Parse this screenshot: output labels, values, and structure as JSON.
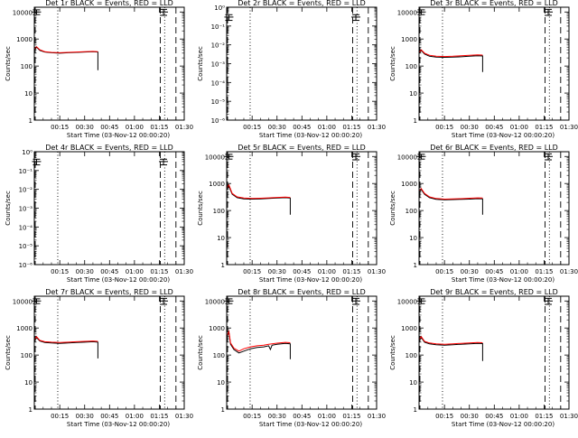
{
  "chart_data": [
    {
      "type": "line",
      "title": "Det 1r BLACK = Events, RED = LLD",
      "xlabel": "Start Time (03-Nov-12 00:00:20)",
      "ylabel": "Counts/sec",
      "yscale": "log",
      "ylim": [
        1,
        15000
      ],
      "ytick_values": [
        1,
        10,
        100,
        1000,
        10000
      ],
      "ytick_labels": [
        "1",
        "10",
        "100",
        "1000",
        "10000"
      ],
      "xlim_minutes": [
        -0.33,
        90
      ],
      "xtick_labels": [
        "00:15",
        "00:30",
        "00:45",
        "01:00",
        "01:15",
        "01:30"
      ],
      "xtick_minutes": [
        15,
        30,
        45,
        60,
        75,
        90
      ],
      "vlines": [
        {
          "x": 0.2,
          "style": "dashed"
        },
        {
          "x": 13.8,
          "style": "dotted"
        },
        {
          "x": 75.6,
          "style": "dashed"
        },
        {
          "x": 78.2,
          "style": "dotted"
        },
        {
          "x": 85.0,
          "style": "dashed"
        }
      ],
      "markers": [
        {
          "x": 1.0,
          "y": 10000,
          "err": 2000
        },
        {
          "x": 77.5,
          "y": 10000,
          "err": 2500
        }
      ],
      "series": [
        {
          "color": "#000000",
          "x": [
            0,
            1,
            3,
            6,
            10,
            15,
            20,
            25,
            30,
            35,
            38,
            38
          ],
          "y": [
            400,
            500,
            380,
            330,
            310,
            300,
            310,
            320,
            330,
            340,
            330,
            70
          ]
        },
        {
          "color": "#ff0000",
          "x": [
            0,
            1,
            3,
            6,
            10,
            15,
            20,
            25,
            30,
            35,
            38
          ],
          "y": [
            450,
            520,
            400,
            340,
            320,
            310,
            320,
            330,
            340,
            350,
            340
          ]
        }
      ]
    },
    {
      "type": "line",
      "title": "Det 2r BLACK = Events, RED = LLD",
      "xlabel": "Start Time (03-Nov-12 00:00:20)",
      "ylabel": "Counts/sec",
      "yscale": "log",
      "ylim": [
        1,
        1e-06
      ],
      "ytick_values": [
        1e-06,
        1e-05,
        0.0001,
        0.001,
        0.01,
        0.1,
        1
      ],
      "ytick_labels": [
        "10⁻⁶",
        "10⁻⁵",
        "10⁻⁴",
        "10⁻³",
        "10⁻²",
        "10⁻¹",
        "10⁰"
      ],
      "xlim_minutes": [
        -0.33,
        90
      ],
      "xtick_labels": [
        "00:15",
        "00:30",
        "00:45",
        "01:00",
        "01:15",
        "01:30"
      ],
      "xtick_minutes": [
        15,
        30,
        45,
        60,
        75,
        90
      ],
      "vlines": [
        {
          "x": 0.2,
          "style": "dashed"
        },
        {
          "x": 13.8,
          "style": "dotted"
        },
        {
          "x": 75.6,
          "style": "dashed"
        },
        {
          "x": 78.2,
          "style": "dotted"
        },
        {
          "x": 85.0,
          "style": "dashed"
        }
      ],
      "markers": [
        {
          "x": 1.0,
          "y": 0.3,
          "err": 0.1
        },
        {
          "x": 77.5,
          "y": 0.3,
          "err": 0.1
        }
      ],
      "series": []
    },
    {
      "type": "line",
      "title": "Det 3r BLACK = Events, RED = LLD",
      "xlabel": "Start Time (03-Nov-12 00:00:20)",
      "ylabel": "Counts/sec",
      "yscale": "log",
      "ylim": [
        1,
        15000
      ],
      "ytick_values": [
        1,
        10,
        100,
        1000,
        10000
      ],
      "ytick_labels": [
        "1",
        "10",
        "100",
        "1000",
        "10000"
      ],
      "xlim_minutes": [
        -0.33,
        90
      ],
      "xtick_labels": [
        "00:15",
        "00:30",
        "00:45",
        "01:00",
        "01:15",
        "01:30"
      ],
      "xtick_minutes": [
        15,
        30,
        45,
        60,
        75,
        90
      ],
      "vlines": [
        {
          "x": 0.2,
          "style": "dashed"
        },
        {
          "x": 13.8,
          "style": "dotted"
        },
        {
          "x": 75.6,
          "style": "dashed"
        },
        {
          "x": 78.2,
          "style": "dotted"
        },
        {
          "x": 85.0,
          "style": "dashed"
        }
      ],
      "markers": [
        {
          "x": 1.0,
          "y": 10000,
          "err": 2000
        },
        {
          "x": 77.5,
          "y": 10000,
          "err": 2500
        }
      ],
      "series": [
        {
          "color": "#000000",
          "x": [
            0,
            1,
            3,
            6,
            10,
            15,
            20,
            25,
            30,
            35,
            38,
            38
          ],
          "y": [
            300,
            380,
            280,
            230,
            215,
            210,
            215,
            220,
            230,
            240,
            235,
            60
          ]
        },
        {
          "color": "#ff0000",
          "x": [
            0,
            1,
            3,
            6,
            10,
            15,
            20,
            25,
            30,
            35,
            38
          ],
          "y": [
            330,
            400,
            300,
            250,
            230,
            225,
            230,
            240,
            250,
            260,
            255
          ]
        }
      ]
    },
    {
      "type": "line",
      "title": "Det 4r BLACK = Events, RED = LLD",
      "xlabel": "Start Time (03-Nov-12 00:00:20)",
      "ylabel": "Counts/sec",
      "yscale": "log",
      "ylim": [
        1,
        1e-06
      ],
      "ytick_values": [
        1e-06,
        1e-05,
        0.0001,
        0.001,
        0.01,
        0.1,
        1
      ],
      "ytick_labels": [
        "10⁻⁶",
        "10⁻⁵",
        "10⁻⁴",
        "10⁻³",
        "10⁻²",
        "10⁻¹",
        "10⁰"
      ],
      "xlim_minutes": [
        -0.33,
        90
      ],
      "xtick_labels": [
        "00:15",
        "00:30",
        "00:45",
        "01:00",
        "01:15",
        "01:30"
      ],
      "xtick_minutes": [
        15,
        30,
        45,
        60,
        75,
        90
      ],
      "vlines": [
        {
          "x": 0.2,
          "style": "dashed"
        },
        {
          "x": 13.8,
          "style": "dotted"
        },
        {
          "x": 75.6,
          "style": "dashed"
        },
        {
          "x": 78.2,
          "style": "dotted"
        },
        {
          "x": 85.0,
          "style": "dashed"
        }
      ],
      "markers": [
        {
          "x": 1.0,
          "y": 0.3,
          "err": 0.1
        },
        {
          "x": 77.5,
          "y": 0.3,
          "err": 0.1
        }
      ],
      "series": []
    },
    {
      "type": "line",
      "title": "Det 5r BLACK = Events, RED = LLD",
      "xlabel": "Start Time (03-Nov-12 00:00:20)",
      "ylabel": "Counts/sec",
      "yscale": "log",
      "ylim": [
        1,
        15000
      ],
      "ytick_values": [
        1,
        10,
        100,
        1000,
        10000
      ],
      "ytick_labels": [
        "1",
        "10",
        "100",
        "1000",
        "10000"
      ],
      "xlim_minutes": [
        -0.33,
        90
      ],
      "xtick_labels": [
        "00:15",
        "00:30",
        "00:45",
        "01:00",
        "01:15",
        "01:30"
      ],
      "xtick_minutes": [
        15,
        30,
        45,
        60,
        75,
        90
      ],
      "vlines": [
        {
          "x": 0.2,
          "style": "dashed"
        },
        {
          "x": 13.8,
          "style": "dotted"
        },
        {
          "x": 75.6,
          "style": "dashed"
        },
        {
          "x": 78.2,
          "style": "dotted"
        },
        {
          "x": 85.0,
          "style": "dashed"
        }
      ],
      "markers": [
        {
          "x": 1.0,
          "y": 10000,
          "err": 2000
        },
        {
          "x": 77.5,
          "y": 10000,
          "err": 2500
        }
      ],
      "series": [
        {
          "color": "#000000",
          "x": [
            0,
            1,
            3,
            6,
            10,
            15,
            20,
            25,
            30,
            35,
            38,
            38
          ],
          "y": [
            600,
            800,
            400,
            300,
            270,
            265,
            270,
            280,
            290,
            300,
            290,
            70
          ]
        },
        {
          "color": "#ff0000",
          "x": [
            0,
            1,
            3,
            6,
            10,
            15,
            20,
            25,
            30,
            35,
            38
          ],
          "y": [
            700,
            900,
            430,
            320,
            290,
            280,
            285,
            295,
            305,
            315,
            305
          ]
        }
      ]
    },
    {
      "type": "line",
      "title": "Det 6r BLACK = Events, RED = LLD",
      "xlabel": "Start Time (03-Nov-12 00:00:20)",
      "ylabel": "Counts/sec",
      "yscale": "log",
      "ylim": [
        1,
        15000
      ],
      "ytick_values": [
        1,
        10,
        100,
        1000,
        10000
      ],
      "ytick_labels": [
        "1",
        "10",
        "100",
        "1000",
        "10000"
      ],
      "xlim_minutes": [
        -0.33,
        90
      ],
      "xtick_labels": [
        "00:15",
        "00:30",
        "00:45",
        "01:00",
        "01:15",
        "01:30"
      ],
      "xtick_minutes": [
        15,
        30,
        45,
        60,
        75,
        90
      ],
      "vlines": [
        {
          "x": 0.2,
          "style": "dashed"
        },
        {
          "x": 13.8,
          "style": "dotted"
        },
        {
          "x": 75.6,
          "style": "dashed"
        },
        {
          "x": 78.2,
          "style": "dotted"
        },
        {
          "x": 85.0,
          "style": "dashed"
        }
      ],
      "markers": [
        {
          "x": 1.0,
          "y": 10000,
          "err": 2000
        },
        {
          "x": 77.5,
          "y": 10000,
          "err": 2500
        }
      ],
      "series": [
        {
          "color": "#000000",
          "x": [
            0,
            1,
            3,
            6,
            10,
            15,
            20,
            25,
            30,
            35,
            38,
            38
          ],
          "y": [
            500,
            600,
            400,
            300,
            260,
            250,
            255,
            260,
            265,
            275,
            270,
            70
          ]
        },
        {
          "color": "#ff0000",
          "x": [
            0,
            1,
            3,
            6,
            10,
            15,
            20,
            25,
            30,
            35,
            38
          ],
          "y": [
            560,
            650,
            430,
            320,
            280,
            265,
            270,
            275,
            285,
            295,
            290
          ]
        }
      ]
    },
    {
      "type": "line",
      "title": "Det 7r BLACK = Events, RED = LLD",
      "xlabel": "Start Time (03-Nov-12 00:00:20)",
      "ylabel": "Counts/sec",
      "yscale": "log",
      "ylim": [
        1,
        15000
      ],
      "ytick_values": [
        1,
        10,
        100,
        1000,
        10000
      ],
      "ytick_labels": [
        "1",
        "10",
        "100",
        "1000",
        "10000"
      ],
      "xlim_minutes": [
        -0.33,
        90
      ],
      "xtick_labels": [
        "00:15",
        "00:30",
        "00:45",
        "01:00",
        "01:15",
        "01:30"
      ],
      "xtick_minutes": [
        15,
        30,
        45,
        60,
        75,
        90
      ],
      "vlines": [
        {
          "x": 0.2,
          "style": "dashed"
        },
        {
          "x": 13.8,
          "style": "dotted"
        },
        {
          "x": 75.6,
          "style": "dashed"
        },
        {
          "x": 78.2,
          "style": "dotted"
        },
        {
          "x": 85.0,
          "style": "dashed"
        }
      ],
      "markers": [
        {
          "x": 1.0,
          "y": 10000,
          "err": 2000
        },
        {
          "x": 77.5,
          "y": 10000,
          "err": 2500
        }
      ],
      "series": [
        {
          "color": "#000000",
          "x": [
            0,
            1,
            3,
            6,
            10,
            15,
            20,
            25,
            30,
            35,
            38,
            38
          ],
          "y": [
            350,
            450,
            330,
            290,
            280,
            270,
            280,
            290,
            300,
            310,
            300,
            75
          ]
        },
        {
          "color": "#ff0000",
          "x": [
            0,
            1,
            3,
            6,
            10,
            15,
            20,
            25,
            30,
            35,
            38
          ],
          "y": [
            380,
            480,
            350,
            310,
            300,
            290,
            300,
            310,
            320,
            330,
            320
          ]
        }
      ]
    },
    {
      "type": "line",
      "title": "Det 8r BLACK = Events, RED = LLD",
      "xlabel": "Start Time (03-Nov-12 00:00:20)",
      "ylabel": "Counts/sec",
      "yscale": "log",
      "ylim": [
        1,
        15000
      ],
      "ytick_values": [
        1,
        10,
        100,
        1000,
        10000
      ],
      "ytick_labels": [
        "1",
        "10",
        "100",
        "1000",
        "10000"
      ],
      "xlim_minutes": [
        -0.33,
        90
      ],
      "xtick_labels": [
        "00:15",
        "00:30",
        "00:45",
        "01:00",
        "01:15",
        "01:30"
      ],
      "xtick_minutes": [
        15,
        30,
        45,
        60,
        75,
        90
      ],
      "vlines": [
        {
          "x": 0.2,
          "style": "dashed"
        },
        {
          "x": 13.8,
          "style": "dotted"
        },
        {
          "x": 75.6,
          "style": "dashed"
        },
        {
          "x": 78.2,
          "style": "dotted"
        },
        {
          "x": 85.0,
          "style": "dashed"
        }
      ],
      "markers": [
        {
          "x": 1.0,
          "y": 10000,
          "err": 2000
        },
        {
          "x": 77.5,
          "y": 10000,
          "err": 2500
        }
      ],
      "series": [
        {
          "color": "#000000",
          "x": [
            0,
            1,
            2,
            4,
            7,
            10,
            14,
            18,
            22,
            25,
            26,
            27,
            30,
            35,
            38,
            38
          ],
          "y": [
            500,
            700,
            250,
            160,
            120,
            140,
            170,
            190,
            200,
            220,
            160,
            230,
            250,
            270,
            260,
            70
          ]
        },
        {
          "color": "#ff0000",
          "x": [
            0,
            1,
            2,
            4,
            7,
            10,
            14,
            18,
            22,
            25,
            27,
            30,
            35,
            38
          ],
          "y": [
            550,
            750,
            280,
            180,
            140,
            170,
            200,
            220,
            230,
            250,
            260,
            275,
            295,
            285
          ]
        }
      ]
    },
    {
      "type": "line",
      "title": "Det 9r BLACK = Events, RED = LLD",
      "xlabel": "Start Time (03-Nov-12 00:00:20)",
      "ylabel": "Counts/sec",
      "yscale": "log",
      "ylim": [
        1,
        15000
      ],
      "ytick_values": [
        1,
        10,
        100,
        1000,
        10000
      ],
      "ytick_labels": [
        "1",
        "10",
        "100",
        "1000",
        "10000"
      ],
      "xlim_minutes": [
        -0.33,
        90
      ],
      "xtick_labels": [
        "00:15",
        "00:30",
        "00:45",
        "01:00",
        "01:15",
        "01:30"
      ],
      "xtick_minutes": [
        15,
        30,
        45,
        60,
        75,
        90
      ],
      "vlines": [
        {
          "x": 0.2,
          "style": "dashed"
        },
        {
          "x": 13.8,
          "style": "dotted"
        },
        {
          "x": 75.6,
          "style": "dashed"
        },
        {
          "x": 78.2,
          "style": "dotted"
        },
        {
          "x": 85.0,
          "style": "dashed"
        }
      ],
      "markers": [
        {
          "x": 1.0,
          "y": 10000,
          "err": 2000
        },
        {
          "x": 77.5,
          "y": 10000,
          "err": 2500
        }
      ],
      "series": [
        {
          "color": "#000000",
          "x": [
            0,
            1,
            3,
            6,
            10,
            15,
            20,
            25,
            30,
            35,
            38,
            38
          ],
          "y": [
            350,
            450,
            300,
            260,
            240,
            230,
            240,
            250,
            260,
            270,
            265,
            60
          ]
        },
        {
          "color": "#ff0000",
          "x": [
            0,
            1,
            3,
            6,
            10,
            15,
            20,
            25,
            30,
            35,
            38
          ],
          "y": [
            380,
            480,
            320,
            280,
            260,
            250,
            260,
            270,
            280,
            290,
            285
          ]
        }
      ]
    }
  ]
}
